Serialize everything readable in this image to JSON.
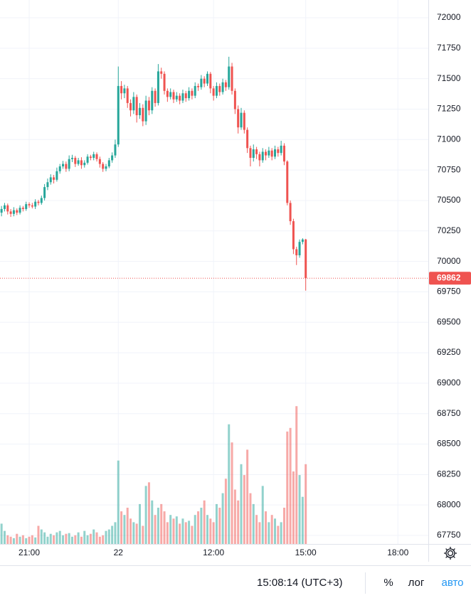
{
  "chart_data": {
    "type": "candlestick",
    "open": [
      70400,
      70430,
      70460,
      70410,
      70390,
      70420,
      70400,
      70440,
      70430,
      70470,
      70460,
      70450,
      70490,
      70480,
      70520,
      70610,
      70650,
      70690,
      70670,
      70740,
      70780,
      70800,
      70760,
      70840,
      70850,
      70800,
      70830,
      70790,
      70810,
      70860,
      70850,
      70880,
      70840,
      70800,
      70760,
      70780,
      70830,
      70870,
      70960,
      71440,
      71380,
      71420,
      71300,
      71240,
      71350,
      71200,
      71260,
      71150,
      71320,
      71240,
      71400,
      71300,
      71560,
      71540,
      71400,
      71350,
      71390,
      71330,
      71360,
      71320,
      71380,
      71340,
      71400,
      71360,
      71440,
      71430,
      71500,
      71460,
      71540,
      71420,
      71360,
      71440,
      71390,
      71470,
      71430,
      71600,
      71400,
      71250,
      71100,
      71220,
      71080,
      70930,
      70850,
      70920,
      70880,
      70830,
      70900,
      70870,
      70910,
      70860,
      70920,
      70890,
      70950,
      70820,
      70480,
      70330,
      70100,
      70050,
      70160,
      70180
    ],
    "high": [
      70455,
      70480,
      70475,
      70430,
      70445,
      70435,
      70460,
      70455,
      70490,
      70485,
      70480,
      70510,
      70505,
      70540,
      70635,
      70680,
      70715,
      70710,
      70770,
      70800,
      70825,
      70820,
      70870,
      70875,
      70865,
      70850,
      70855,
      70830,
      70880,
      70875,
      70900,
      70895,
      70860,
      70815,
      70800,
      70850,
      70895,
      71000,
      71600,
      71480,
      71450,
      71440,
      71330,
      71390,
      71370,
      71300,
      71290,
      71360,
      71350,
      71430,
      71420,
      71620,
      71590,
      71560,
      71420,
      71420,
      71410,
      71390,
      71380,
      71410,
      71400,
      71430,
      71420,
      71470,
      71460,
      71530,
      71520,
      71560,
      71555,
      71440,
      71470,
      71460,
      71500,
      71490,
      71680,
      71630,
      71420,
      71280,
      71260,
      71240,
      71100,
      70950,
      70960,
      70940,
      70900,
      70930,
      70920,
      70940,
      70930,
      70950,
      70940,
      70990,
      70970,
      70830,
      70500,
      70350,
      70120,
      70180,
      70190,
      70185
    ],
    "low": [
      70370,
      70410,
      70385,
      70365,
      70370,
      70380,
      70385,
      70410,
      70415,
      70440,
      70435,
      70430,
      70460,
      70465,
      70500,
      70585,
      70630,
      70640,
      70655,
      70720,
      70760,
      70735,
      70740,
      70815,
      70775,
      70785,
      70760,
      70770,
      70795,
      70830,
      70830,
      70820,
      70770,
      70735,
      70740,
      70765,
      70810,
      70850,
      70940,
      71330,
      71340,
      71260,
      71190,
      71210,
      71140,
      71170,
      71110,
      71120,
      71200,
      71210,
      71270,
      71280,
      71500,
      71370,
      71310,
      71330,
      71300,
      71310,
      71290,
      71300,
      71310,
      71320,
      71330,
      71340,
      71400,
      71410,
      71430,
      71440,
      71380,
      71320,
      71340,
      71360,
      71370,
      71400,
      71410,
      71370,
      71210,
      71050,
      71080,
      71050,
      70890,
      70780,
      70820,
      70840,
      70780,
      70810,
      70830,
      70850,
      70830,
      70840,
      70860,
      70870,
      70790,
      70460,
      70300,
      70060,
      69970,
      70030,
      70140,
      69760
    ],
    "close": [
      70430,
      70460,
      70410,
      70390,
      70420,
      70400,
      70440,
      70430,
      70470,
      70460,
      70450,
      70490,
      70480,
      70520,
      70610,
      70650,
      70690,
      70670,
      70740,
      70780,
      70800,
      70760,
      70840,
      70850,
      70800,
      70830,
      70790,
      70810,
      70860,
      70850,
      70880,
      70840,
      70800,
      70760,
      70780,
      70830,
      70870,
      70960,
      71440,
      71380,
      71420,
      71300,
      71240,
      71350,
      71200,
      71260,
      71150,
      71320,
      71240,
      71400,
      71300,
      71560,
      71540,
      71400,
      71350,
      71390,
      71330,
      71360,
      71320,
      71380,
      71340,
      71400,
      71360,
      71440,
      71430,
      71500,
      71460,
      71540,
      71420,
      71360,
      71440,
      71390,
      71470,
      71430,
      71600,
      71400,
      71250,
      71100,
      71220,
      71080,
      70930,
      70850,
      70920,
      70880,
      70830,
      70900,
      70870,
      70910,
      70860,
      70920,
      70890,
      70950,
      70820,
      70480,
      70330,
      70100,
      70050,
      70160,
      70180,
      69862
    ],
    "volume": [
      28,
      18,
      12,
      10,
      8,
      14,
      10,
      12,
      8,
      10,
      12,
      9,
      25,
      20,
      16,
      10,
      14,
      12,
      16,
      18,
      12,
      14,
      15,
      10,
      12,
      16,
      10,
      18,
      12,
      14,
      20,
      16,
      10,
      12,
      18,
      20,
      25,
      30,
      115,
      45,
      40,
      50,
      35,
      30,
      28,
      55,
      25,
      80,
      85,
      60,
      40,
      50,
      55,
      45,
      30,
      40,
      35,
      38,
      28,
      35,
      30,
      32,
      25,
      40,
      45,
      50,
      60,
      40,
      35,
      30,
      55,
      50,
      70,
      90,
      165,
      140,
      75,
      60,
      110,
      95,
      130,
      70,
      55,
      40,
      30,
      80,
      45,
      30,
      40,
      35,
      25,
      30,
      50,
      155,
      160,
      100,
      190,
      95,
      65,
      110
    ],
    "volume_lim": [
      0,
      750
    ],
    "xlim": [
      -0.5,
      138.9
    ],
    "xticks": [
      {
        "value": 9,
        "label": "21:00"
      },
      {
        "value": 38,
        "label": "22"
      },
      {
        "value": 69,
        "label": "12:00"
      },
      {
        "value": 99,
        "label": "15:00"
      },
      {
        "value": 129,
        "label": "18:00"
      }
    ],
    "ylim": [
      67680,
      72146
    ],
    "yticks": [
      67750,
      68000,
      68250,
      68500,
      68750,
      69000,
      69250,
      69500,
      69750,
      70000,
      70250,
      70500,
      70750,
      71000,
      71250,
      71500,
      71750,
      72000
    ],
    "last_price": 69862,
    "up_color": "#26a69a",
    "down_color": "#ef5350",
    "grid": true
  },
  "footer": {
    "clock": "15:08:14 (UTC+3)",
    "percent": "%",
    "log": "лог",
    "auto": "авто"
  }
}
